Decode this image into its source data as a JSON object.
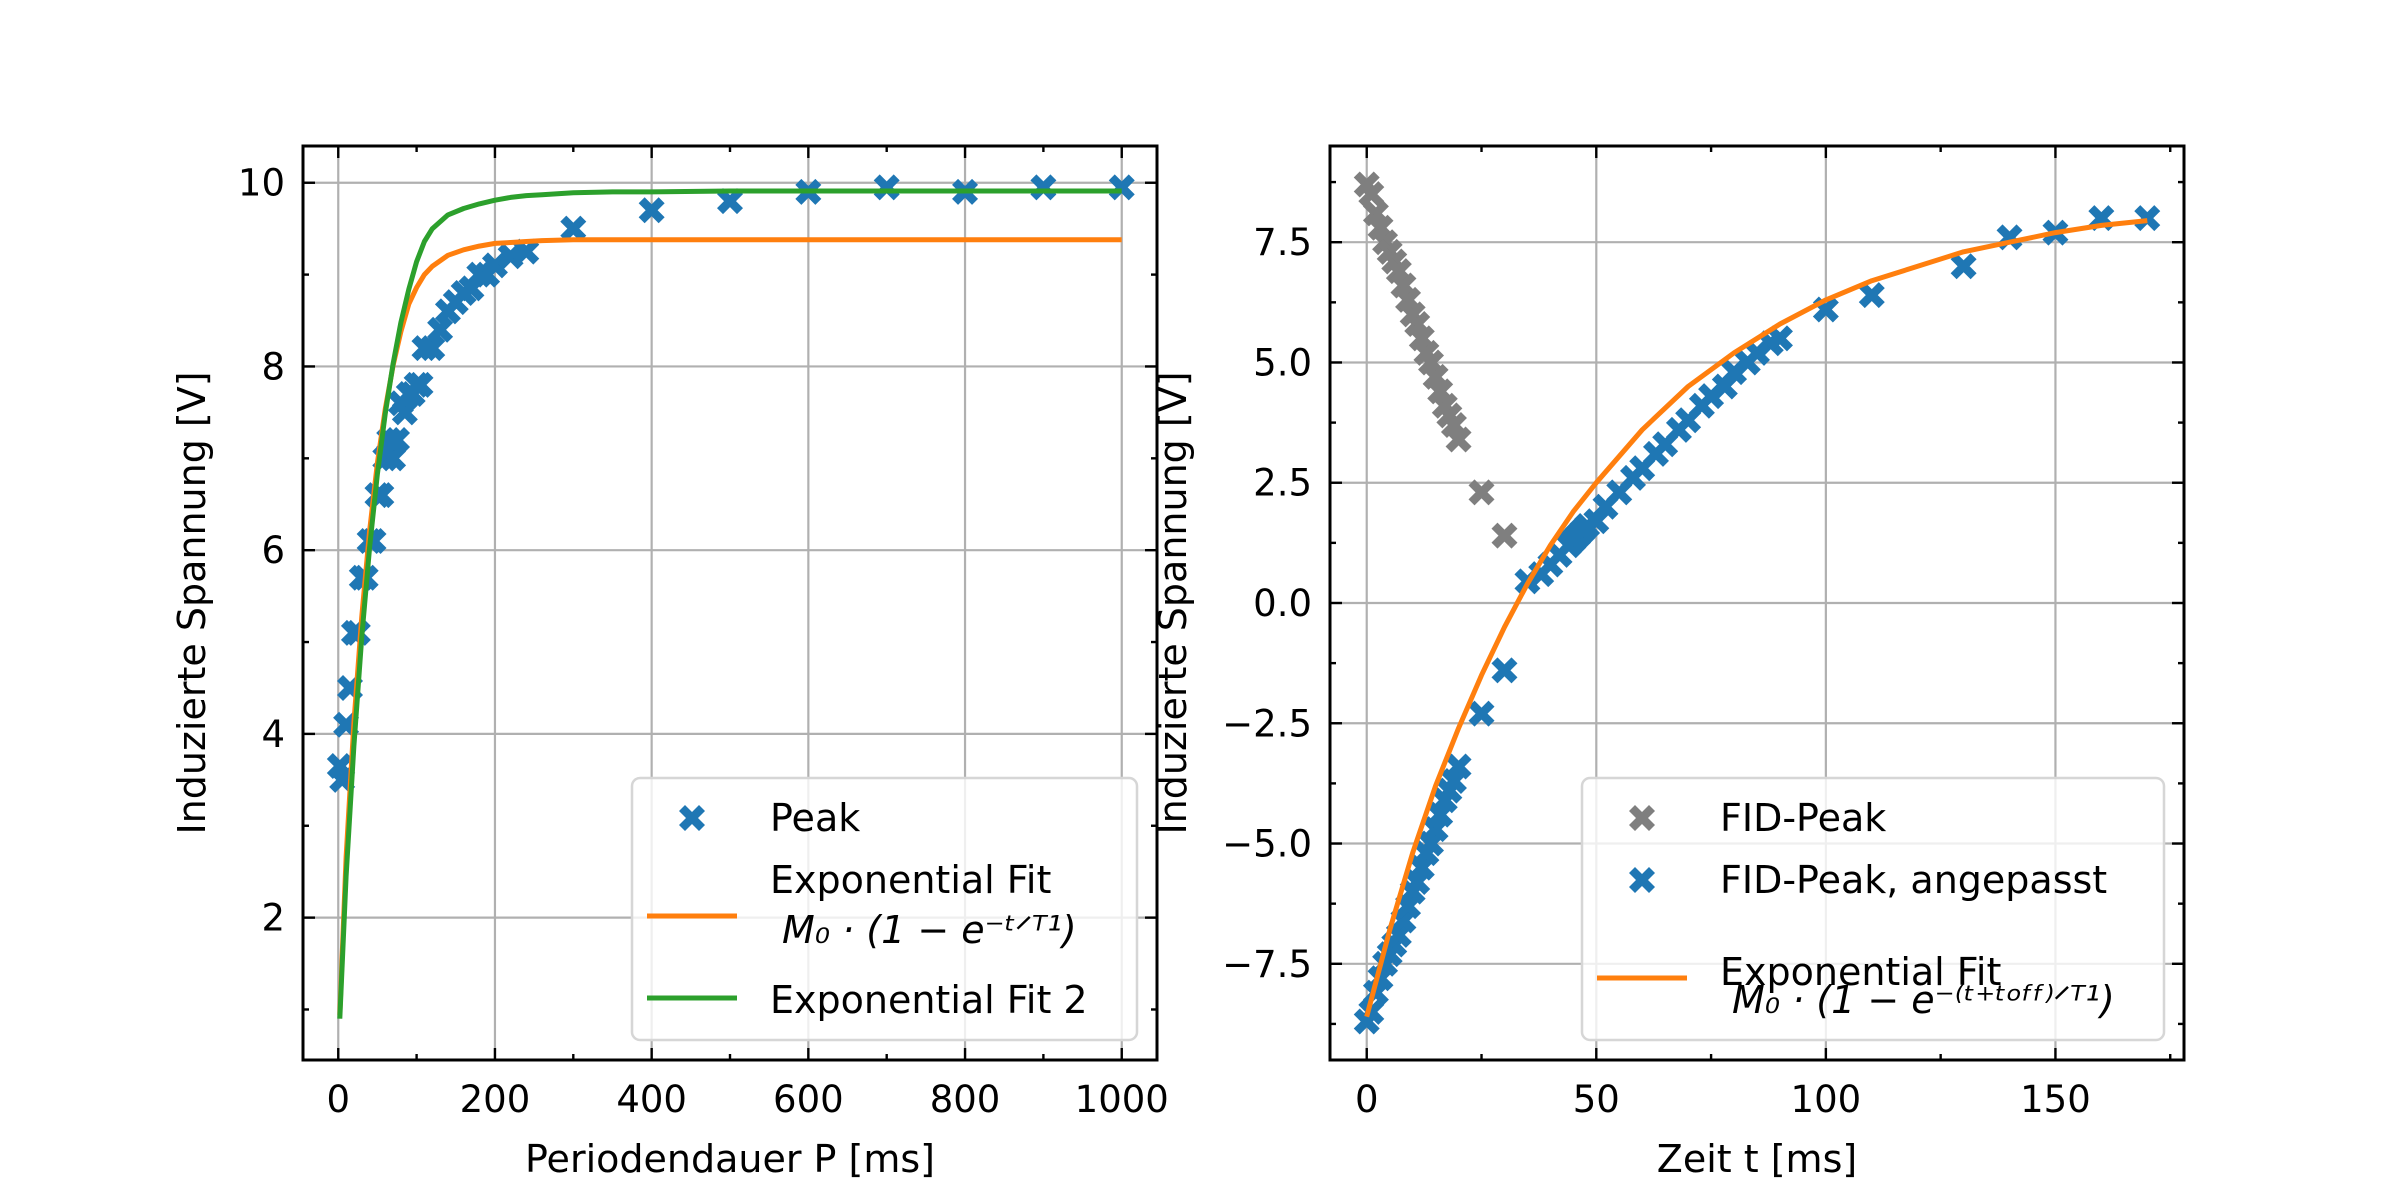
{
  "colors": {
    "blue": "#1f77b4",
    "orange": "#ff7f0e",
    "green": "#2ca02c",
    "gray": "#7f7f7f"
  },
  "chart_data": [
    {
      "type": "scatter",
      "title": "",
      "xlabel": "Periodendauer P [ms]",
      "ylabel": "Induzierte Spannung [V]",
      "xlim": [
        -45,
        1045
      ],
      "ylim": [
        0.45,
        10.4
      ],
      "xticks": [
        0,
        200,
        400,
        600,
        800,
        1000
      ],
      "yticks": [
        2,
        4,
        6,
        8,
        10
      ],
      "xtick_labels": [
        "0",
        "200",
        "400",
        "600",
        "800",
        "1000"
      ],
      "ytick_labels": [
        "2",
        "4",
        "6",
        "8",
        "10"
      ],
      "grid": true,
      "legend_position": "lower-right",
      "series": [
        {
          "name": "Peak",
          "kind": "scatter",
          "marker": "X",
          "color": "#1f77b4",
          "x": [
            2,
            5,
            10,
            15,
            20,
            25,
            30,
            35,
            40,
            45,
            50,
            55,
            60,
            65,
            70,
            75,
            80,
            85,
            90,
            95,
            100,
            105,
            110,
            120,
            130,
            140,
            150,
            160,
            170,
            180,
            190,
            200,
            220,
            240,
            300,
            400,
            500,
            600,
            700,
            800,
            900,
            1000
          ],
          "y": [
            3.65,
            3.5,
            4.1,
            4.5,
            5.1,
            5.1,
            5.7,
            5.7,
            6.1,
            6.1,
            6.6,
            6.6,
            7.0,
            7.2,
            7.0,
            7.2,
            7.6,
            7.5,
            7.7,
            7.7,
            7.8,
            7.8,
            8.2,
            8.2,
            8.4,
            8.6,
            8.7,
            8.8,
            8.85,
            9.0,
            9.0,
            9.1,
            9.2,
            9.25,
            9.5,
            9.7,
            9.8,
            9.9,
            9.95,
            9.9,
            9.95,
            9.95
          ]
        },
        {
          "name": "Exponential Fit",
          "formula": "M_0 · (1 − e^(−t/T₁))",
          "kind": "line",
          "color": "#ff7f0e",
          "x": [
            2,
            10,
            20,
            30,
            40,
            50,
            60,
            70,
            80,
            90,
            100,
            110,
            120,
            140,
            160,
            180,
            200,
            220,
            240,
            260,
            300,
            350,
            400,
            500,
            600,
            700,
            800,
            900,
            1000
          ],
          "y": [
            0.94,
            2.66,
            4.12,
            5.28,
            6.21,
            6.95,
            7.54,
            8.01,
            8.38,
            8.68,
            8.86,
            9.0,
            9.09,
            9.21,
            9.27,
            9.31,
            9.34,
            9.35,
            9.36,
            9.37,
            9.38,
            9.38,
            9.38,
            9.38,
            9.38,
            9.38,
            9.38,
            9.38,
            9.38
          ]
        },
        {
          "name": "Exponential Fit 2",
          "kind": "line",
          "color": "#2ca02c",
          "x": [
            2,
            10,
            20,
            30,
            40,
            50,
            60,
            70,
            80,
            90,
            100,
            110,
            120,
            140,
            160,
            180,
            200,
            220,
            240,
            260,
            280,
            300,
            350,
            400,
            500,
            600,
            700,
            800,
            900,
            1000
          ],
          "y": [
            0.9,
            2.45,
            3.87,
            5.06,
            6.03,
            6.83,
            7.49,
            8.03,
            8.48,
            8.84,
            9.14,
            9.36,
            9.5,
            9.65,
            9.72,
            9.77,
            9.81,
            9.84,
            9.86,
            9.87,
            9.88,
            9.89,
            9.9,
            9.9,
            9.91,
            9.91,
            9.91,
            9.91,
            9.91,
            9.91
          ]
        }
      ],
      "legend": {
        "entries": [
          {
            "label": "Peak",
            "kind": "marker",
            "color": "#1f77b4"
          },
          {
            "label": "Exponential Fit",
            "formula": "M₀ · (1 − e⁻ᵗᐟᵀ¹)",
            "kind": "line",
            "color": "#ff7f0e"
          },
          {
            "label": "Exponential Fit 2",
            "kind": "line",
            "color": "#2ca02c"
          }
        ]
      }
    },
    {
      "type": "scatter",
      "title": "",
      "xlabel": "Zeit t [ms]",
      "ylabel": "Induzierte Spannung [V]",
      "xlim": [
        -8,
        178
      ],
      "ylim": [
        -9.5,
        9.5
      ],
      "xticks": [
        0,
        50,
        100,
        150
      ],
      "yticks": [
        -7.5,
        -5.0,
        -2.5,
        0.0,
        2.5,
        5.0,
        7.5
      ],
      "xtick_labels": [
        "0",
        "50",
        "100",
        "150"
      ],
      "ytick_labels": [
        "−7.5",
        "−5.0",
        "−2.5",
        "0.0",
        "2.5",
        "5.0",
        "7.5"
      ],
      "grid": true,
      "legend_position": "lower-right",
      "series": [
        {
          "name": "FID-Peak",
          "kind": "scatter",
          "marker": "X",
          "color": "#7f7f7f",
          "x": [
            0,
            1,
            2,
            3,
            4,
            5,
            6,
            7,
            8,
            9,
            10,
            11,
            12,
            13,
            14,
            15,
            16,
            17,
            18,
            19,
            20,
            25,
            30
          ],
          "y": [
            8.7,
            8.5,
            8.1,
            7.8,
            7.5,
            7.3,
            7.1,
            6.9,
            6.6,
            6.3,
            6.0,
            5.8,
            5.5,
            5.2,
            5.0,
            4.7,
            4.4,
            4.1,
            3.9,
            3.7,
            3.4,
            2.3,
            1.4
          ]
        },
        {
          "name": "FID-Peak, angepasst",
          "kind": "scatter",
          "marker": "X",
          "color": "#1f77b4",
          "x": [
            0,
            1,
            2,
            3,
            4,
            5,
            6,
            7,
            8,
            9,
            10,
            11,
            12,
            13,
            14,
            15,
            16,
            17,
            18,
            19,
            20,
            25,
            30,
            35,
            38,
            40,
            42,
            44,
            45,
            46,
            47,
            48,
            50,
            52,
            55,
            58,
            60,
            63,
            65,
            68,
            70,
            73,
            75,
            78,
            80,
            83,
            85,
            88,
            90,
            100,
            110,
            130,
            140,
            150,
            160,
            170
          ],
          "y": [
            -8.7,
            -8.5,
            -8.1,
            -7.8,
            -7.5,
            -7.3,
            -7.1,
            -6.9,
            -6.6,
            -6.3,
            -6.0,
            -5.8,
            -5.5,
            -5.2,
            -5.0,
            -4.7,
            -4.4,
            -4.1,
            -3.9,
            -3.7,
            -3.4,
            -2.3,
            -1.4,
            0.45,
            0.6,
            0.8,
            1.0,
            1.2,
            1.3,
            1.4,
            1.5,
            1.6,
            1.7,
            2.0,
            2.3,
            2.6,
            2.8,
            3.1,
            3.3,
            3.6,
            3.8,
            4.1,
            4.3,
            4.5,
            4.8,
            5.0,
            5.2,
            5.4,
            5.5,
            6.1,
            6.4,
            7.0,
            7.6,
            7.7,
            8.0,
            8.0
          ]
        },
        {
          "name": "Exponential Fit",
          "formula": "M_0 · (1 − e^(−(t + t_off)/T₁))",
          "kind": "line",
          "color": "#ff7f0e",
          "x": [
            0,
            5,
            10,
            15,
            20,
            25,
            30,
            35,
            40,
            45,
            50,
            60,
            70,
            80,
            90,
            100,
            110,
            120,
            130,
            140,
            150,
            160,
            170
          ],
          "y": [
            -8.6,
            -6.8,
            -5.2,
            -3.8,
            -2.6,
            -1.5,
            -0.5,
            0.4,
            1.2,
            1.9,
            2.5,
            3.6,
            4.5,
            5.2,
            5.8,
            6.3,
            6.7,
            7.0,
            7.3,
            7.5,
            7.7,
            7.85,
            7.95
          ]
        }
      ],
      "legend": {
        "entries": [
          {
            "label": "FID-Peak",
            "kind": "marker",
            "color": "#7f7f7f"
          },
          {
            "label": "FID-Peak, angepasst",
            "kind": "marker",
            "color": "#1f77b4"
          },
          {
            "label": "Exponential Fit",
            "formula": "M₀ · (1 − e⁻⁽ᵗ⁺ᵗᵒᶠᶠ⁾ᐟᵀ¹)",
            "kind": "line",
            "color": "#ff7f0e"
          }
        ]
      }
    }
  ]
}
